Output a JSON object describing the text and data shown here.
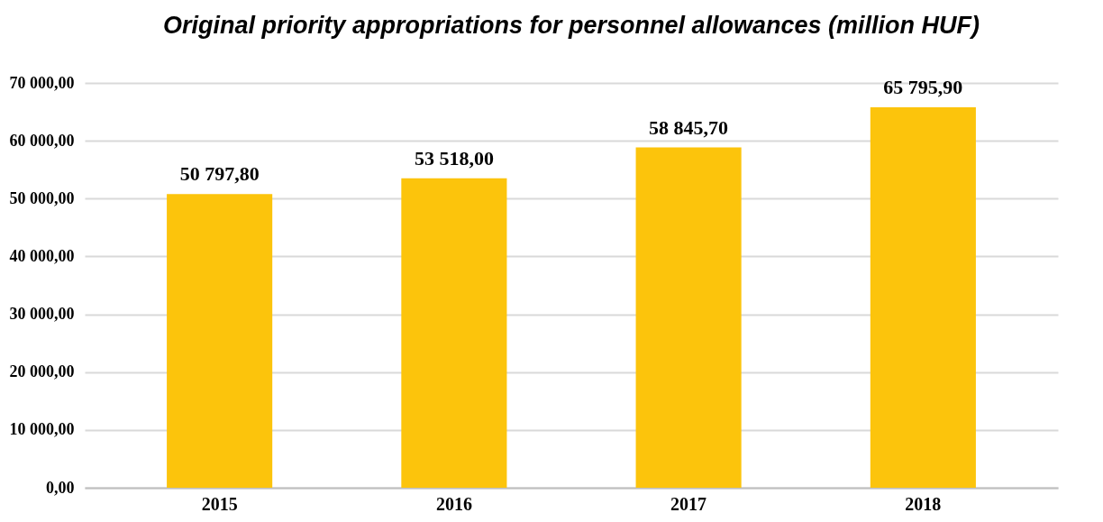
{
  "chart_data": {
    "type": "bar",
    "title": "Original priority appropriations for personnel allowances (million HUF)",
    "categories": [
      "2015",
      "2016",
      "2017",
      "2018"
    ],
    "values": [
      50797.8,
      53518,
      58845.7,
      65795.9
    ],
    "value_labels": [
      "50 797,80",
      "53 518,00",
      "58 845,70",
      "65 795,90"
    ],
    "color": "#fcc40c",
    "ylim": [
      0,
      70000
    ],
    "yticks": [
      {
        "value": 0,
        "label": "0,00"
      },
      {
        "value": 10000,
        "label": "10 000,00"
      },
      {
        "value": 20000,
        "label": "20 000,00"
      },
      {
        "value": 30000,
        "label": "30 000,00"
      },
      {
        "value": 40000,
        "label": "40 000,00"
      },
      {
        "value": 50000,
        "label": "50 000,00"
      },
      {
        "value": 60000,
        "label": "60 000,00"
      },
      {
        "value": 70000,
        "label": "70 000,00"
      }
    ],
    "grid": true
  }
}
